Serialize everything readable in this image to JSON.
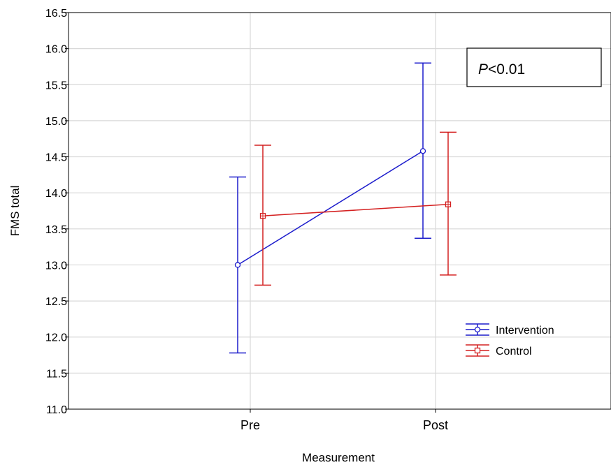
{
  "chart_data": {
    "type": "line",
    "xlabel": "Measurement",
    "ylabel": "FMS total",
    "categories": [
      "Pre",
      "Post"
    ],
    "ylim": [
      11.0,
      16.5
    ],
    "yticks": [
      "11.0",
      "11.5",
      "12.0",
      "12.5",
      "13.0",
      "13.5",
      "14.0",
      "14.5",
      "15.0",
      "15.5",
      "16.0",
      "16.5"
    ],
    "grid": true,
    "annotation": {
      "italic": "P",
      "rest": "<0.01"
    },
    "legend": {
      "placement": "lower-right"
    },
    "series": [
      {
        "name": "Intervention",
        "color": "#1c1ccc",
        "marker": "circle",
        "values": [
          13.0,
          14.58
        ],
        "lower": [
          11.78,
          13.37
        ],
        "upper": [
          14.22,
          15.8
        ]
      },
      {
        "name": "Control",
        "color": "#d42020",
        "marker": "square",
        "values": [
          13.68,
          13.84
        ],
        "lower": [
          12.72,
          12.86
        ],
        "upper": [
          14.66,
          14.84
        ]
      }
    ]
  }
}
